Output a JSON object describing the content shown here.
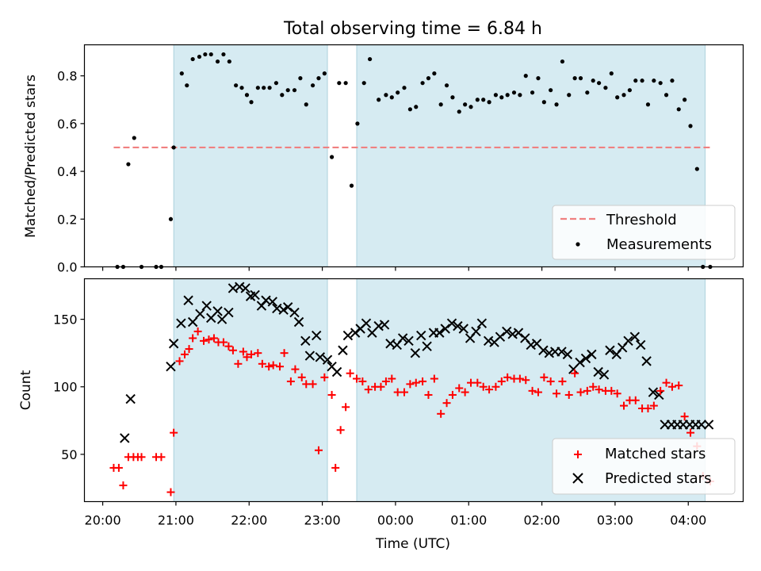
{
  "figure": {
    "title": "Total observing time = 6.84 h",
    "xlabel": "Time (UTC)",
    "x_ticks": [
      "20:00",
      "21:00",
      "22:00",
      "23:00",
      "00:00",
      "01:00",
      "02:00",
      "03:00",
      "04:00"
    ],
    "x_tick_hours": [
      20,
      21,
      22,
      23,
      24,
      25,
      26,
      27,
      28
    ]
  },
  "chart_data": [
    {
      "type": "scatter",
      "name": "top-panel",
      "ylabel": "Matched/Predicted stars",
      "xlim_hours": [
        19.75,
        28.75
      ],
      "ylim": [
        0,
        0.93
      ],
      "y_ticks": [
        0.0,
        0.2,
        0.4,
        0.6,
        0.8
      ],
      "y_tick_labels": [
        "0.0",
        "0.2",
        "0.4",
        "0.6",
        "0.8"
      ],
      "observing_windows_hours": [
        [
          20.97,
          23.07
        ],
        [
          23.47,
          28.23
        ]
      ],
      "threshold": {
        "label": "Threshold",
        "value": 0.5,
        "x_range_hours": [
          20.15,
          28.3
        ],
        "color": "#f08080"
      },
      "legend": {
        "position": "lower right",
        "entries": [
          "Threshold",
          "Measurements"
        ]
      },
      "series": [
        {
          "name": "Measurements",
          "color": "#000000",
          "x_hours": [
            20.2,
            20.28,
            20.35,
            20.43,
            20.53,
            20.73,
            20.8,
            20.93,
            20.97,
            21.08,
            21.15,
            21.23,
            21.32,
            21.4,
            21.48,
            21.57,
            21.65,
            21.73,
            21.82,
            21.9,
            21.97,
            22.03,
            22.12,
            22.2,
            22.28,
            22.37,
            22.45,
            22.53,
            22.62,
            22.7,
            22.78,
            22.87,
            22.95,
            23.03,
            23.13,
            23.23,
            23.32,
            23.4,
            23.48,
            23.57,
            23.65,
            23.77,
            23.87,
            23.95,
            24.03,
            24.12,
            24.2,
            24.28,
            24.37,
            24.45,
            24.53,
            24.62,
            24.7,
            24.78,
            24.87,
            24.95,
            25.03,
            25.12,
            25.2,
            25.28,
            25.37,
            25.45,
            25.53,
            25.62,
            25.7,
            25.78,
            25.87,
            25.95,
            26.03,
            26.12,
            26.2,
            26.28,
            26.37,
            26.45,
            26.53,
            26.62,
            26.7,
            26.78,
            26.87,
            26.95,
            27.03,
            27.12,
            27.2,
            27.28,
            27.37,
            27.45,
            27.53,
            27.62,
            27.7,
            27.78,
            27.87,
            27.95,
            28.03,
            28.12,
            28.2,
            28.3
          ],
          "y": [
            0.0,
            0.0,
            0.43,
            0.54,
            0.0,
            0.0,
            0.0,
            0.2,
            0.5,
            0.81,
            0.76,
            0.87,
            0.88,
            0.89,
            0.89,
            0.86,
            0.89,
            0.86,
            0.76,
            0.75,
            0.72,
            0.69,
            0.75,
            0.75,
            0.75,
            0.77,
            0.72,
            0.74,
            0.74,
            0.79,
            0.68,
            0.76,
            0.79,
            0.81,
            0.46,
            0.77,
            0.77,
            0.34,
            0.6,
            0.77,
            0.87,
            0.7,
            0.72,
            0.71,
            0.73,
            0.75,
            0.66,
            0.67,
            0.77,
            0.79,
            0.81,
            0.68,
            0.76,
            0.71,
            0.65,
            0.68,
            0.67,
            0.7,
            0.7,
            0.69,
            0.72,
            0.71,
            0.72,
            0.73,
            0.72,
            0.8,
            0.73,
            0.79,
            0.69,
            0.74,
            0.68,
            0.86,
            0.72,
            0.79,
            0.79,
            0.73,
            0.78,
            0.77,
            0.75,
            0.81,
            0.71,
            0.72,
            0.74,
            0.78,
            0.78,
            0.68,
            0.78,
            0.77,
            0.72,
            0.78,
            0.66,
            0.7,
            0.59,
            0.41,
            0.0,
            0.0
          ]
        }
      ]
    },
    {
      "type": "scatter",
      "name": "bottom-panel",
      "ylabel": "Count",
      "xlim_hours": [
        19.75,
        28.75
      ],
      "ylim": [
        15,
        180
      ],
      "y_ticks": [
        50,
        100,
        150
      ],
      "y_tick_labels": [
        "50",
        "100",
        "150"
      ],
      "observing_windows_hours": [
        [
          20.97,
          23.07
        ],
        [
          23.47,
          28.23
        ]
      ],
      "legend": {
        "position": "lower right",
        "entries": [
          "Matched stars",
          "Predicted stars"
        ]
      },
      "series": [
        {
          "name": "Matched stars",
          "marker": "+",
          "color": "#ff0000",
          "x_hours": [
            20.15,
            20.22,
            20.28,
            20.35,
            20.42,
            20.48,
            20.53,
            20.73,
            20.8,
            20.93,
            20.97,
            21.05,
            21.12,
            21.18,
            21.23,
            21.3,
            21.38,
            21.45,
            21.52,
            21.58,
            21.65,
            21.72,
            21.78,
            21.85,
            21.92,
            21.97,
            22.03,
            22.12,
            22.18,
            22.27,
            22.33,
            22.42,
            22.48,
            22.57,
            22.63,
            22.72,
            22.78,
            22.87,
            22.95,
            23.03,
            23.13,
            23.18,
            23.25,
            23.32,
            23.38,
            23.47,
            23.55,
            23.63,
            23.72,
            23.8,
            23.87,
            23.95,
            24.03,
            24.12,
            24.2,
            24.28,
            24.37,
            24.45,
            24.53,
            24.62,
            24.7,
            24.78,
            24.87,
            24.95,
            25.03,
            25.12,
            25.2,
            25.28,
            25.37,
            25.45,
            25.53,
            25.62,
            25.7,
            25.78,
            25.87,
            25.95,
            26.03,
            26.12,
            26.2,
            26.28,
            26.37,
            26.45,
            26.53,
            26.62,
            26.7,
            26.78,
            26.87,
            26.95,
            27.03,
            27.12,
            27.2,
            27.28,
            27.37,
            27.45,
            27.53,
            27.62,
            27.7,
            27.78,
            27.87,
            27.95,
            28.03,
            28.12,
            28.2,
            28.3
          ],
          "y": [
            40,
            40,
            27,
            48,
            48,
            48,
            48,
            48,
            48,
            22,
            66,
            119,
            124,
            128,
            136,
            141,
            134,
            135,
            136,
            133,
            133,
            130,
            127,
            117,
            126,
            122,
            124,
            125,
            117,
            115,
            116,
            115,
            125,
            104,
            113,
            107,
            102,
            102,
            53,
            107,
            94,
            40,
            68,
            85,
            110,
            106,
            104,
            98,
            100,
            100,
            104,
            106,
            96,
            96,
            102,
            103,
            104,
            94,
            106,
            80,
            88,
            94,
            99,
            96,
            103,
            103,
            100,
            98,
            100,
            104,
            107,
            106,
            106,
            105,
            97,
            96,
            107,
            104,
            95,
            104,
            94,
            110,
            96,
            97,
            100,
            98,
            97,
            97,
            95,
            86,
            90,
            90,
            84,
            84,
            86,
            97,
            103,
            100,
            101,
            78,
            66,
            56,
            34,
            30
          ],
          "x_hours_adjusted": true
        },
        {
          "name": "Predicted stars",
          "marker": "x",
          "color": "#000000",
          "x_hours": [
            20.3,
            20.38,
            20.93,
            20.97,
            21.07,
            21.17,
            21.23,
            21.33,
            21.42,
            21.48,
            21.57,
            21.63,
            21.72,
            21.78,
            21.87,
            21.95,
            22.02,
            22.08,
            22.17,
            22.23,
            22.32,
            22.38,
            22.47,
            22.53,
            22.62,
            22.68,
            22.77,
            22.83,
            22.92,
            22.97,
            23.07,
            23.13,
            23.2,
            23.28,
            23.35,
            23.45,
            23.52,
            23.6,
            23.68,
            23.77,
            23.85,
            23.93,
            24.02,
            24.1,
            24.18,
            24.27,
            24.35,
            24.43,
            24.52,
            24.6,
            24.68,
            24.77,
            24.85,
            24.93,
            25.02,
            25.1,
            25.18,
            25.27,
            25.35,
            25.43,
            25.52,
            25.6,
            25.68,
            25.77,
            25.85,
            25.93,
            26.02,
            26.1,
            26.18,
            26.27,
            26.35,
            26.43,
            26.52,
            26.6,
            26.68,
            26.77,
            26.85,
            26.93,
            27.02,
            27.1,
            27.18,
            27.27,
            27.35,
            27.43,
            27.52,
            27.6,
            27.68,
            27.77,
            27.85,
            27.93,
            28.02,
            28.1,
            28.18,
            28.28
          ],
          "y": [
            62,
            91,
            115,
            132,
            147,
            164,
            148,
            154,
            160,
            151,
            156,
            150,
            155,
            173,
            174,
            173,
            167,
            168,
            160,
            164,
            163,
            158,
            157,
            159,
            155,
            148,
            134,
            123,
            138,
            122,
            120,
            115,
            111,
            127,
            138,
            140,
            143,
            147,
            140,
            145,
            146,
            132,
            131,
            136,
            134,
            125,
            138,
            130,
            140,
            140,
            143,
            147,
            145,
            143,
            136,
            141,
            147,
            134,
            133,
            137,
            141,
            139,
            140,
            136,
            131,
            132,
            127,
            125,
            126,
            126,
            124,
            113,
            118,
            121,
            124,
            111,
            109,
            127,
            124,
            129,
            134,
            137,
            131,
            119,
            96,
            94,
            72,
            72,
            72,
            72,
            72,
            72,
            72,
            72
          ],
          "note_unused": ""
        }
      ]
    }
  ]
}
